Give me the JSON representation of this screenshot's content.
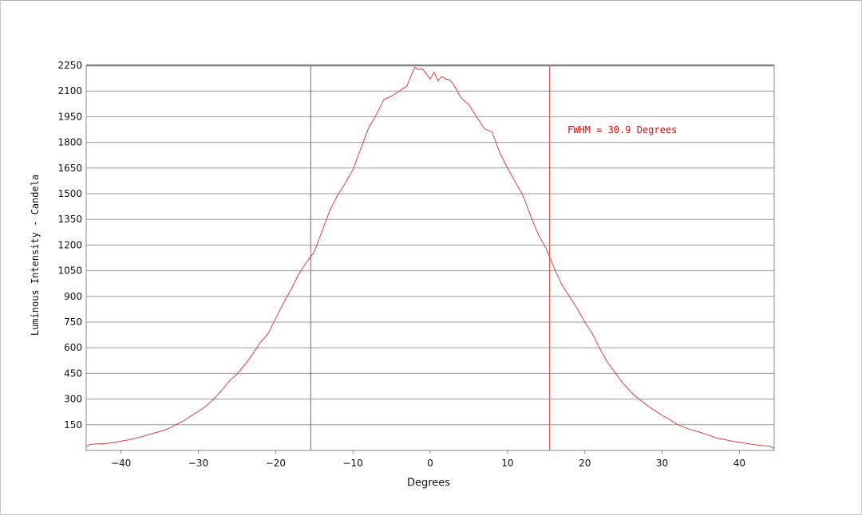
{
  "chart_data": {
    "type": "line",
    "title": "",
    "xlabel": "Degrees",
    "ylabel": "Luminous Intensity - Candela",
    "xlim": [
      -44.5,
      44.5
    ],
    "ylim": [
      0,
      2250
    ],
    "xticks": [
      -40,
      -30,
      -20,
      -10,
      0,
      10,
      20,
      30,
      40
    ],
    "yticks": [
      150,
      300,
      450,
      600,
      750,
      900,
      1050,
      1200,
      1350,
      1500,
      1650,
      1800,
      1950,
      2100,
      2250
    ],
    "grid": "horizontal",
    "line_color": "#e04040",
    "annotation": "FWHM = 30.9 Degrees",
    "vlines": [
      -15.45,
      15.45
    ],
    "series": [
      {
        "x": [
          -44.5,
          -44,
          -43,
          -42,
          -41,
          -40,
          -39,
          -38,
          -37,
          -36,
          -35,
          -34,
          -33,
          -32,
          -31,
          -30,
          -29,
          -28,
          -27,
          -26,
          -25,
          -24,
          -23,
          -22,
          -21,
          -20,
          -19,
          -18,
          -17,
          -16,
          -15,
          -14,
          -13,
          -12,
          -11,
          -10,
          -9,
          -8,
          -7,
          -6,
          -5,
          -4,
          -3,
          -2,
          -1.5,
          -1,
          -0.5,
          0,
          0.5,
          1,
          1.5,
          2,
          2.5,
          3,
          4,
          5,
          6,
          7,
          8,
          9,
          10,
          11,
          12,
          13,
          14,
          15,
          16,
          17,
          18,
          19,
          20,
          21,
          22,
          23,
          24,
          25,
          26,
          27,
          28,
          29,
          30,
          31,
          32,
          33,
          34,
          35,
          36,
          37,
          38,
          39,
          40,
          41,
          42,
          43,
          44,
          44.5
        ],
        "y": [
          20,
          35,
          38,
          40,
          45,
          55,
          62,
          72,
          85,
          98,
          110,
          125,
          148,
          170,
          200,
          228,
          260,
          300,
          350,
          405,
          445,
          500,
          560,
          630,
          680,
          770,
          860,
          940,
          1030,
          1100,
          1160,
          1280,
          1400,
          1490,
          1560,
          1640,
          1760,
          1880,
          1960,
          2050,
          2070,
          2100,
          2130,
          2240,
          2225,
          2230,
          2200,
          2170,
          2210,
          2160,
          2185,
          2170,
          2165,
          2140,
          2060,
          2020,
          1950,
          1880,
          1860,
          1740,
          1650,
          1570,
          1490,
          1370,
          1260,
          1180,
          1070,
          970,
          900,
          830,
          750,
          680,
          590,
          510,
          450,
          390,
          340,
          300,
          265,
          235,
          205,
          180,
          152,
          132,
          118,
          105,
          90,
          72,
          64,
          55,
          48,
          40,
          33,
          28,
          24,
          12
        ]
      }
    ]
  }
}
